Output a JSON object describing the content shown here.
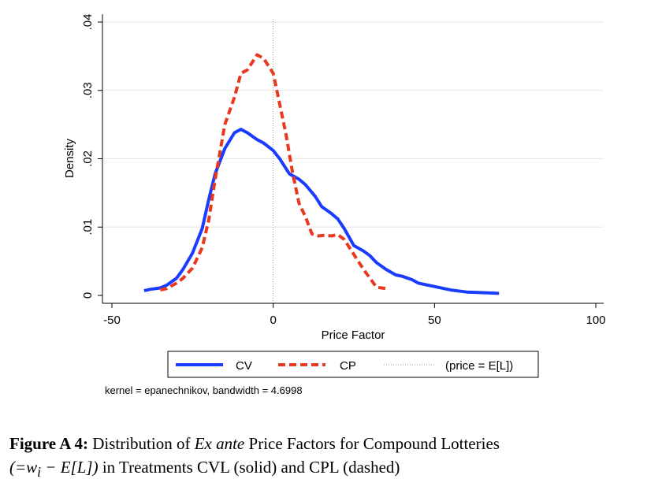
{
  "chart_data": {
    "type": "line",
    "title": "",
    "xlabel": "Price Factor",
    "ylabel": "Density",
    "xlim": [
      -50,
      100
    ],
    "ylim": [
      0,
      0.04
    ],
    "x_ticks": [
      -50,
      0,
      50,
      100
    ],
    "x_tick_labels": [
      "-50",
      "0",
      "50",
      "100"
    ],
    "y_ticks": [
      0,
      0.01,
      0.02,
      0.03,
      0.04
    ],
    "y_tick_labels": [
      "0",
      ".01",
      ".02",
      ".03",
      ".04"
    ],
    "grid": "horizontal",
    "legend_position": "bottom",
    "reference_line": {
      "x": 0,
      "label": "(price = E[L])",
      "style": "dotted",
      "color": "#999999"
    },
    "series": [
      {
        "name": "CV",
        "color": "#1a3cff",
        "style": "solid",
        "x": [
          -40,
          -38,
          -35,
          -33,
          -30,
          -28,
          -25,
          -22,
          -20,
          -18,
          -15,
          -12,
          -10,
          -8,
          -5,
          -3,
          0,
          2,
          5,
          8,
          10,
          13,
          15,
          18,
          20,
          22,
          25,
          28,
          30,
          32,
          35,
          38,
          40,
          43,
          45,
          48,
          50,
          55,
          60,
          65,
          70
        ],
        "y": [
          0.0007,
          0.0009,
          0.0011,
          0.0015,
          0.0025,
          0.0038,
          0.0062,
          0.0098,
          0.014,
          0.0178,
          0.0215,
          0.0238,
          0.0243,
          0.0238,
          0.0228,
          0.0223,
          0.0212,
          0.02,
          0.0178,
          0.017,
          0.0162,
          0.0145,
          0.013,
          0.012,
          0.0112,
          0.0098,
          0.0073,
          0.0065,
          0.0058,
          0.0048,
          0.0038,
          0.003,
          0.0028,
          0.0023,
          0.0018,
          0.0015,
          0.0013,
          0.0008,
          0.0005,
          0.0004,
          0.0003
        ]
      },
      {
        "name": "CP",
        "color": "#e8391e",
        "style": "dashed",
        "x": [
          -35,
          -33,
          -30,
          -28,
          -25,
          -22,
          -20,
          -18,
          -15,
          -12,
          -10,
          -8,
          -5,
          -3,
          0,
          2,
          4,
          6,
          8,
          10,
          12,
          14,
          16,
          18,
          20,
          22,
          25,
          28,
          30,
          32,
          35
        ],
        "y": [
          0.0008,
          0.001,
          0.0018,
          0.0025,
          0.004,
          0.007,
          0.011,
          0.017,
          0.025,
          0.029,
          0.0325,
          0.033,
          0.0352,
          0.0347,
          0.0325,
          0.028,
          0.0235,
          0.018,
          0.0135,
          0.0115,
          0.009,
          0.0087,
          0.0088,
          0.0087,
          0.0089,
          0.0082,
          0.006,
          0.0038,
          0.0025,
          0.0012,
          0.001
        ]
      }
    ],
    "note": "kernel = epanechnikov, bandwidth = 4.6998"
  },
  "caption": {
    "label": "Figure A 4:",
    "line1_prefix": "Distribution of",
    "line1_italic": "Ex ante",
    "line1_suffix": "Price Factors for Compound Lotteries",
    "line2_math": "(=w",
    "line2_math_sub": "i",
    "line2_math_rest": " − E[L])",
    "line2_text": "in Treatments CVL (solid) and CPL (dashed)"
  }
}
